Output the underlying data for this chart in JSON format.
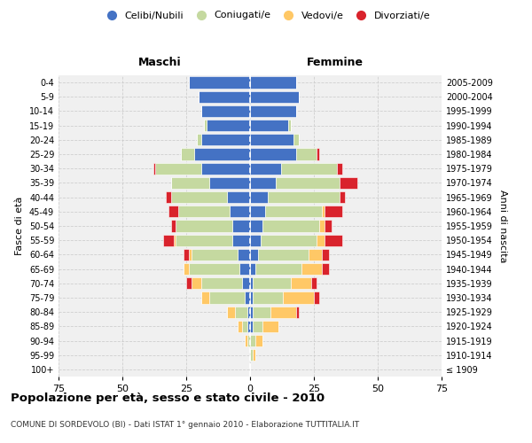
{
  "age_groups": [
    "100+",
    "95-99",
    "90-94",
    "85-89",
    "80-84",
    "75-79",
    "70-74",
    "65-69",
    "60-64",
    "55-59",
    "50-54",
    "45-49",
    "40-44",
    "35-39",
    "30-34",
    "25-29",
    "20-24",
    "15-19",
    "10-14",
    "5-9",
    "0-4"
  ],
  "birth_years": [
    "≤ 1909",
    "1910-1914",
    "1915-1919",
    "1920-1924",
    "1925-1929",
    "1930-1934",
    "1935-1939",
    "1940-1944",
    "1945-1949",
    "1950-1954",
    "1955-1959",
    "1960-1964",
    "1965-1969",
    "1970-1974",
    "1975-1979",
    "1980-1984",
    "1985-1989",
    "1990-1994",
    "1995-1999",
    "2000-2004",
    "2005-2009"
  ],
  "males": {
    "celibi": [
      0,
      0,
      0,
      1,
      1,
      2,
      3,
      4,
      5,
      7,
      7,
      8,
      9,
      16,
      19,
      22,
      19,
      17,
      19,
      20,
      24
    ],
    "coniugati": [
      0,
      0,
      1,
      2,
      5,
      14,
      16,
      20,
      18,
      22,
      22,
      20,
      22,
      15,
      18,
      5,
      2,
      1,
      0,
      0,
      0
    ],
    "vedovi": [
      0,
      0,
      1,
      2,
      3,
      3,
      4,
      2,
      1,
      1,
      0,
      0,
      0,
      0,
      0,
      0,
      0,
      0,
      0,
      0,
      0
    ],
    "divorziati": [
      0,
      0,
      0,
      0,
      0,
      0,
      2,
      0,
      2,
      4,
      2,
      4,
      2,
      0,
      1,
      0,
      0,
      0,
      0,
      0,
      0
    ]
  },
  "females": {
    "nubili": [
      0,
      0,
      0,
      1,
      1,
      1,
      1,
      2,
      3,
      4,
      5,
      6,
      7,
      10,
      12,
      18,
      17,
      15,
      18,
      19,
      18
    ],
    "coniugate": [
      0,
      1,
      2,
      4,
      7,
      12,
      15,
      18,
      20,
      22,
      22,
      22,
      28,
      25,
      22,
      8,
      2,
      1,
      0,
      0,
      0
    ],
    "vedove": [
      0,
      1,
      3,
      6,
      10,
      12,
      8,
      8,
      5,
      3,
      2,
      1,
      0,
      0,
      0,
      0,
      0,
      0,
      0,
      0,
      0
    ],
    "divorziate": [
      0,
      0,
      0,
      0,
      1,
      2,
      2,
      3,
      3,
      7,
      3,
      7,
      2,
      7,
      2,
      1,
      0,
      0,
      0,
      0,
      0
    ]
  },
  "color_celibi": "#4472C4",
  "color_coniugati": "#c5d9a0",
  "color_vedovi": "#ffc866",
  "color_divorziati": "#d9232c",
  "xlim": 75,
  "title": "Popolazione per età, sesso e stato civile - 2010",
  "subtitle": "COMUNE DI SORDEVOLO (BI) - Dati ISTAT 1° gennaio 2010 - Elaborazione TUTTITALIA.IT",
  "ylabel_left": "Fasce di età",
  "ylabel_right": "Anni di nascita",
  "label_maschi": "Maschi",
  "label_femmine": "Femmine",
  "legend_labels": [
    "Celibi/Nubili",
    "Coniugati/e",
    "Vedovi/e",
    "Divorziati/e"
  ],
  "bg_color": "#f0f0f0",
  "grid_color": "#cccccc"
}
